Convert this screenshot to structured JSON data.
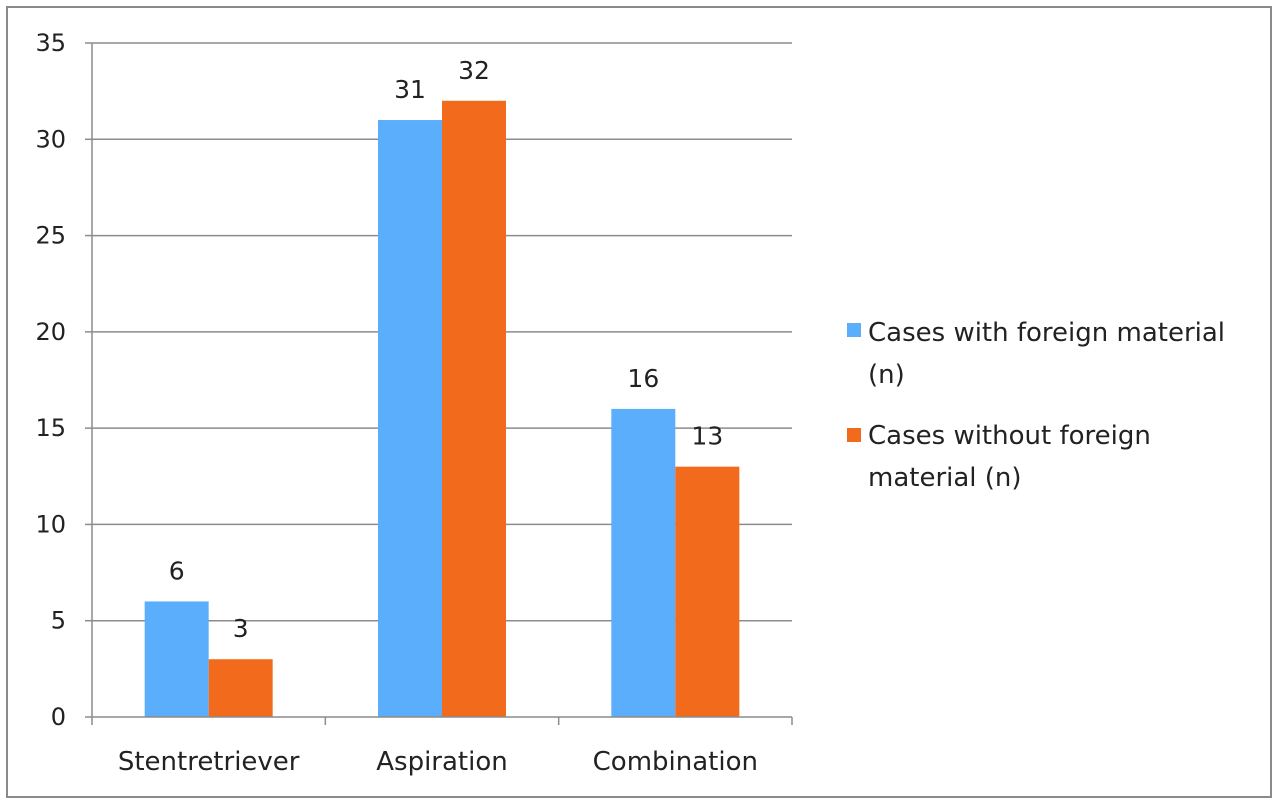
{
  "chart_data": {
    "type": "bar",
    "title": "",
    "xlabel": "",
    "ylabel": "",
    "categories": [
      "Stentretriever",
      "Aspiration",
      "Combination"
    ],
    "series": [
      {
        "name": "Cases with foreign material (n)",
        "values": [
          6,
          31,
          16
        ],
        "color": "#5aaefc"
      },
      {
        "name": "Cases without foreign material (n)",
        "values": [
          3,
          32,
          13
        ],
        "color": "#f26b1d"
      }
    ],
    "ylim": [
      0,
      35
    ],
    "yticks": [
      0,
      5,
      10,
      15,
      20,
      25,
      30,
      35
    ],
    "grid": true,
    "legend": "right",
    "data_labels": true
  },
  "legend": {
    "item1_line1": "Cases with foreign material",
    "item1_line2": "(n)",
    "item2_line1": "Cases without foreign",
    "item2_line2": "material (n)"
  }
}
